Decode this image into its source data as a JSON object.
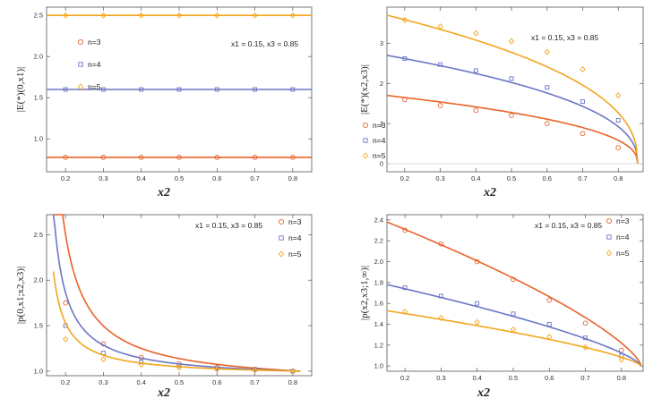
{
  "colors": {
    "n3": "#e8622a",
    "n4": "#6b76c6",
    "n5": "#f2a51c"
  },
  "chart_data": [
    {
      "type": "line",
      "id": "E0",
      "ylabel": "|E(*)(0,x1)|",
      "xlabel": "x2",
      "annotation": "x1 = 0.15, x3 = 0.85",
      "legend": [
        "n=3",
        "n=4",
        "n=5"
      ],
      "xlim": [
        0.15,
        0.85
      ],
      "ylim": [
        0.6,
        2.6
      ],
      "xticks": [
        "0.2",
        "0.3",
        "0.4",
        "0.5",
        "0.6",
        "0.7",
        "0.8"
      ],
      "yticks": [
        "1.0",
        "1.5",
        "2.0",
        "2.5"
      ],
      "series": [
        {
          "name": "n=3",
          "values": [
            0.775,
            0.775,
            0.775,
            0.775,
            0.775,
            0.775,
            0.775
          ]
        },
        {
          "name": "n=4",
          "values": [
            1.6,
            1.6,
            1.6,
            1.6,
            1.6,
            1.6,
            1.6
          ]
        },
        {
          "name": "n=5",
          "values": [
            2.5,
            2.5,
            2.5,
            2.5,
            2.5,
            2.5,
            2.5
          ]
        }
      ]
    },
    {
      "type": "line",
      "id": "Ex2x3",
      "ylabel": "|E(*)(x2,x3)|",
      "xlabel": "x2",
      "annotation": "x1 = 0.15, x3 = 0.85",
      "legend": [
        "n=3",
        "n=4",
        "n=5"
      ],
      "xlim": [
        0.15,
        0.87
      ],
      "ylim": [
        -0.2,
        3.9
      ],
      "xticks": [
        "0.2",
        "0.3",
        "0.4",
        "0.5",
        "0.6",
        "0.7",
        "0.8"
      ],
      "yticks": [
        "0",
        "1",
        "2",
        "3"
      ],
      "series": [
        {
          "name": "n=3",
          "values": [
            1.6,
            1.45,
            1.33,
            1.2,
            1.0,
            0.75,
            0.4
          ]
        },
        {
          "name": "n=4",
          "values": [
            2.62,
            2.47,
            2.32,
            2.12,
            1.9,
            1.55,
            1.08
          ]
        },
        {
          "name": "n=5",
          "values": [
            3.58,
            3.42,
            3.25,
            3.05,
            2.78,
            2.35,
            1.7
          ]
        }
      ]
    },
    {
      "type": "line",
      "id": "p0",
      "ylabel": "|p(0,x1;x2,x3)|",
      "xlabel": "x2",
      "annotation": "x1 = 0.15, x3 = 0.85",
      "legend": [
        "n=3",
        "n=4",
        "n=5"
      ],
      "xlim": [
        0.15,
        0.85
      ],
      "ylim": [
        0.95,
        2.72
      ],
      "xticks": [
        "0.2",
        "0.3",
        "0.4",
        "0.5",
        "0.6",
        "0.7",
        "0.8"
      ],
      "yticks": [
        "1.0",
        "1.5",
        "2.0",
        "2.5"
      ],
      "series": [
        {
          "name": "n=3",
          "values": [
            1.75,
            1.3,
            1.15,
            1.08,
            1.04,
            1.02,
            1.0
          ]
        },
        {
          "name": "n=4",
          "values": [
            1.5,
            1.2,
            1.1,
            1.06,
            1.03,
            1.02,
            1.0
          ]
        },
        {
          "name": "n=5",
          "values": [
            1.35,
            1.13,
            1.07,
            1.04,
            1.02,
            1.01,
            1.0
          ]
        }
      ]
    },
    {
      "type": "line",
      "id": "px2",
      "ylabel": "|p(x2,x3;1,∞)|",
      "xlabel": "x2",
      "annotation": "x1 = 0.15, x3 = 0.85",
      "legend": [
        "n=3",
        "n=4",
        "n=5"
      ],
      "xlim": [
        0.15,
        0.86
      ],
      "ylim": [
        0.95,
        2.45
      ],
      "xticks": [
        "0.2",
        "0.3",
        "0.4",
        "0.5",
        "0.6",
        "0.7",
        "0.8"
      ],
      "yticks": [
        "1.0",
        "1.2",
        "1.4",
        "1.6",
        "1.8",
        "2.0",
        "2.2",
        "2.4"
      ],
      "series": [
        {
          "name": "n=3",
          "values": [
            2.3,
            2.17,
            2.0,
            1.83,
            1.63,
            1.41,
            1.15
          ]
        },
        {
          "name": "n=4",
          "values": [
            1.75,
            1.67,
            1.6,
            1.5,
            1.4,
            1.27,
            1.1
          ]
        },
        {
          "name": "n=5",
          "values": [
            1.52,
            1.46,
            1.42,
            1.35,
            1.28,
            1.18,
            1.06
          ]
        }
      ]
    }
  ]
}
